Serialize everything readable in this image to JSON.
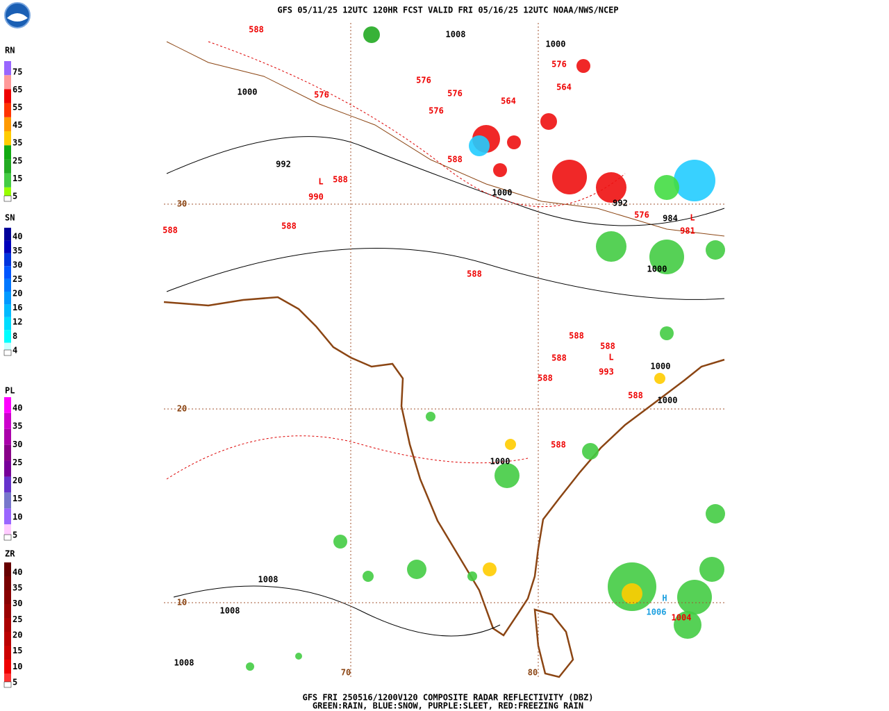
{
  "header": {
    "title": "GFS 05/11/25 12UTC 120HR FCST VALID FRI 05/16/25 12UTC NOAA/NWS/NCEP"
  },
  "legends": [
    {
      "label": "RN",
      "ticks": [
        "5",
        "15",
        "25",
        "35",
        "45",
        "55",
        "65",
        "75"
      ]
    },
    {
      "label": "SN",
      "ticks": [
        "4",
        "8",
        "12",
        "16",
        "20",
        "25",
        "30",
        "35",
        "40"
      ]
    },
    {
      "label": "PL",
      "ticks": [
        "5",
        "10",
        "15",
        "20",
        "25",
        "30",
        "35",
        "40"
      ]
    },
    {
      "label": "ZR",
      "ticks": [
        "5",
        "10",
        "15",
        "20",
        "25",
        "30",
        "35",
        "40"
      ]
    }
  ],
  "map": {
    "lat_labels": [
      "30",
      "20",
      "10"
    ],
    "lon_labels": [
      "70",
      "80"
    ],
    "labels": [
      "588",
      "1008",
      "1000",
      "1000",
      "576",
      "576",
      "576",
      "576",
      "564",
      "564",
      "576",
      "992",
      "588",
      "L",
      "588",
      "990",
      "1000",
      "992",
      "576",
      "984",
      "L",
      "981",
      "588",
      "588",
      "1000",
      "588",
      "588",
      "588",
      "588",
      "L",
      "993",
      "588",
      "1000",
      "588",
      "1000",
      "588",
      "1000",
      "1008",
      "1008",
      "1008",
      "H",
      "1006",
      "1004"
    ]
  },
  "footer": {
    "line1": "GFS FRI 250516/1200V120 COMPOSITE RADAR REFLECTIVITY (DBZ)",
    "line2": "GREEN:RAIN, BLUE:SNOW, PURPLE:SLEET, RED:FREEZING RAIN"
  }
}
